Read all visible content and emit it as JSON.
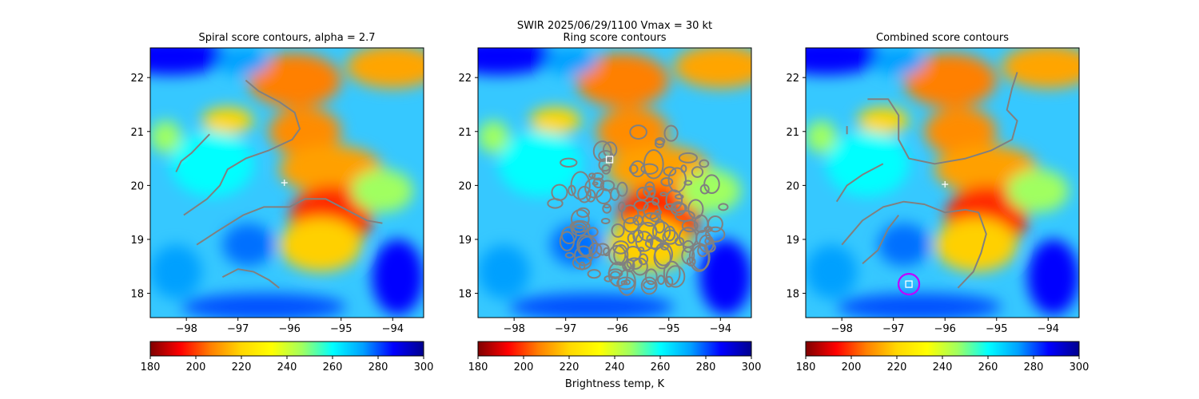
{
  "figure": {
    "suptitle_line1": "SWIR  2025/06/29/1100    Vmax = 30 kt",
    "colorbar_label": "Brightness temp, K",
    "colormap": [
      "#7f0000",
      "#ff0000",
      "#ff8000",
      "#ffd700",
      "#ffff00",
      "#a0ff60",
      "#00ffff",
      "#00a0ff",
      "#0000ff",
      "#00008f"
    ]
  },
  "chart_data": [
    {
      "type": "heatmap",
      "title": "Spiral score contours, alpha =  2.7",
      "xlim": [
        -98.7,
        -93.4
      ],
      "ylim": [
        17.55,
        22.55
      ],
      "xticks": [
        -98,
        -97,
        -96,
        -95,
        -94
      ],
      "yticks": [
        18,
        19,
        20,
        21,
        22
      ],
      "colorbar": {
        "ticks": [
          180,
          200,
          220,
          240,
          260,
          280,
          300
        ],
        "range": [
          180,
          300
        ],
        "cmap": "jet_r"
      },
      "markers": [
        {
          "kind": "plus",
          "lon": -96.1,
          "lat": 20.05,
          "color": "#ffffff"
        }
      ],
      "contour_color": "#808080",
      "contours": [
        [
          [
            -96.85,
            21.95
          ],
          [
            -96.6,
            21.75
          ],
          [
            -96.2,
            21.55
          ],
          [
            -95.9,
            21.35
          ],
          [
            -95.8,
            21.05
          ],
          [
            -95.95,
            20.85
          ],
          [
            -96.4,
            20.65
          ],
          [
            -96.85,
            20.5
          ],
          [
            -97.2,
            20.3
          ],
          [
            -97.35,
            20.0
          ],
          [
            -97.6,
            19.75
          ],
          [
            -98.05,
            19.45
          ]
        ],
        [
          [
            -98.2,
            20.25
          ],
          [
            -98.1,
            20.45
          ],
          [
            -97.9,
            20.6
          ],
          [
            -97.7,
            20.8
          ],
          [
            -97.55,
            20.95
          ]
        ],
        [
          [
            -97.8,
            18.9
          ],
          [
            -97.4,
            19.15
          ],
          [
            -96.9,
            19.45
          ],
          [
            -96.5,
            19.6
          ],
          [
            -96.0,
            19.6
          ],
          [
            -95.7,
            19.75
          ],
          [
            -95.3,
            19.75
          ],
          [
            -94.9,
            19.55
          ],
          [
            -94.5,
            19.35
          ],
          [
            -94.2,
            19.3
          ]
        ],
        [
          [
            -97.3,
            18.3
          ],
          [
            -97.0,
            18.45
          ],
          [
            -96.7,
            18.4
          ],
          [
            -96.4,
            18.25
          ],
          [
            -96.2,
            18.1
          ]
        ]
      ]
    },
    {
      "type": "heatmap",
      "title": "Ring score contours",
      "xlim": [
        -98.7,
        -93.4
      ],
      "ylim": [
        17.55,
        22.55
      ],
      "xticks": [
        -98,
        -97,
        -96,
        -95,
        -94
      ],
      "yticks": [
        18,
        19,
        20,
        21,
        22
      ],
      "colorbar": {
        "ticks": [
          180,
          200,
          220,
          240,
          260,
          280,
          300
        ],
        "range": [
          180,
          300
        ],
        "cmap": "jet_r"
      },
      "markers": [
        {
          "kind": "square",
          "lon": -96.15,
          "lat": 20.48,
          "color": "#ffffff"
        }
      ],
      "contour_color": "#808080",
      "ring_region": {
        "center_lon": -95.6,
        "center_lat": 19.6,
        "radius_deg": 1.5
      },
      "contours": []
    },
    {
      "type": "heatmap",
      "title": "Combined score contours",
      "xlim": [
        -98.7,
        -93.4
      ],
      "ylim": [
        17.55,
        22.55
      ],
      "xticks": [
        -98,
        -97,
        -96,
        -95,
        -94
      ],
      "yticks": [
        18,
        19,
        20,
        21,
        22
      ],
      "colorbar": {
        "ticks": [
          180,
          200,
          220,
          240,
          260,
          280,
          300
        ],
        "range": [
          180,
          300
        ],
        "cmap": "jet_r"
      },
      "markers": [
        {
          "kind": "plus",
          "lon": -96.0,
          "lat": 20.02,
          "color": "#ffffff"
        },
        {
          "kind": "circle",
          "lon": -96.7,
          "lat": 18.17,
          "color": "#c000ff"
        },
        {
          "kind": "square",
          "lon": -96.7,
          "lat": 18.17,
          "color": "#ffffff"
        }
      ],
      "contour_color": "#808080",
      "contours": [
        [
          [
            -97.5,
            21.6
          ],
          [
            -97.1,
            21.6
          ],
          [
            -96.9,
            21.3
          ],
          [
            -96.9,
            20.85
          ],
          [
            -96.7,
            20.5
          ],
          [
            -96.2,
            20.4
          ],
          [
            -95.6,
            20.5
          ],
          [
            -95.1,
            20.65
          ],
          [
            -94.7,
            20.85
          ],
          [
            -94.6,
            21.2
          ],
          [
            -94.8,
            21.4
          ],
          [
            -94.7,
            21.8
          ],
          [
            -94.6,
            22.1
          ]
        ],
        [
          [
            -98.1,
            19.7
          ],
          [
            -97.9,
            20.0
          ],
          [
            -97.6,
            20.2
          ],
          [
            -97.2,
            20.4
          ]
        ],
        [
          [
            -98.0,
            18.9
          ],
          [
            -97.6,
            19.35
          ],
          [
            -97.2,
            19.6
          ],
          [
            -96.8,
            19.7
          ],
          [
            -96.4,
            19.65
          ],
          [
            -96.0,
            19.5
          ],
          [
            -95.6,
            19.55
          ],
          [
            -95.35,
            19.5
          ],
          [
            -95.2,
            19.1
          ],
          [
            -95.3,
            18.75
          ],
          [
            -95.45,
            18.4
          ],
          [
            -95.6,
            18.25
          ],
          [
            -95.75,
            18.1
          ]
        ],
        [
          [
            -97.6,
            18.55
          ],
          [
            -97.3,
            18.8
          ],
          [
            -97.1,
            19.2
          ],
          [
            -96.9,
            19.45
          ]
        ],
        [
          [
            -97.9,
            20.95
          ],
          [
            -97.9,
            21.1
          ]
        ]
      ]
    }
  ]
}
